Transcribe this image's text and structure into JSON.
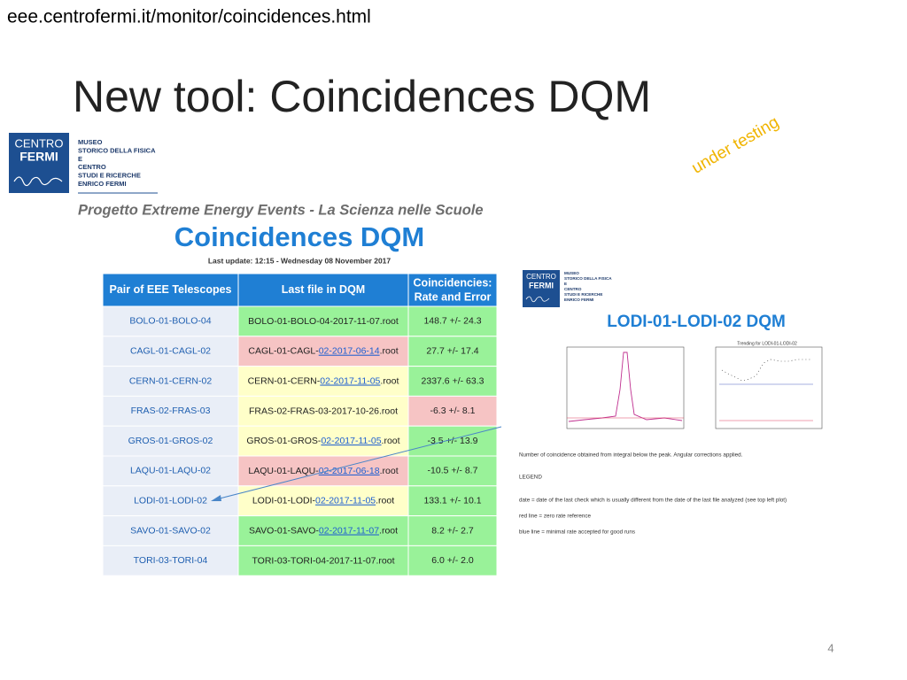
{
  "url": "eee.centrofermi.it/monitor/coincidences.html",
  "title": "New tool: Coincidences DQM",
  "annotation": "under testing",
  "logo": {
    "mark": [
      "CENTRO",
      "FERMI"
    ],
    "lines": [
      "MUSEO",
      "STORICO DELLA FISICA",
      "E",
      "CENTRO",
      "STUDI E RICERCHE",
      "ENRICO FERMI"
    ]
  },
  "page": {
    "project": "Progetto Extreme Energy Events - La Scienza nelle Scuole",
    "heading": "Coincidences DQM",
    "last_update": "Last update: 12:15 - Wednesday 08 November 2017"
  },
  "table": {
    "header_color": "#1f7fd4",
    "pair_color": "#e9eef7",
    "columns": [
      "Pair of EEE Telescopes",
      "Last file in DQM",
      [
        "Coincidencies:",
        "Rate and Error"
      ]
    ],
    "rows": [
      {
        "pair": "BOLO-01-BOLO-04",
        "file": [
          "BOLO-01-BOLO-04-2017-11-07.root"
        ],
        "file_color": "#99f299",
        "rate": "148.7 +/- 24.3",
        "rate_color": "#99f299"
      },
      {
        "pair": "CAGL-01-CAGL-02",
        "file": [
          "CAGL-01-CAGL-",
          "02-2017-06-14",
          ".root"
        ],
        "file_color": "#f6c4c4",
        "rate": "27.7 +/- 17.4",
        "rate_color": "#99f299"
      },
      {
        "pair": "CERN-01-CERN-02",
        "file": [
          "CERN-01-CERN-",
          "02-2017-11-05",
          ".root"
        ],
        "file_color": "#ffffc9",
        "rate": "2337.6 +/- 63.3",
        "rate_color": "#99f299"
      },
      {
        "pair": "FRAS-02-FRAS-03",
        "file": [
          "FRAS-02-FRAS-03-2017-10-26.root"
        ],
        "file_color": "#ffffc9",
        "rate": "-6.3 +/- 8.1",
        "rate_color": "#f6c4c4"
      },
      {
        "pair": "GROS-01-GROS-02",
        "file": [
          "GROS-01-GROS-",
          "02-2017-11-05",
          ".root"
        ],
        "file_color": "#ffffc9",
        "rate": "-3.5 +/- 13.9",
        "rate_color": "#99f299"
      },
      {
        "pair": "LAQU-01-LAQU-02",
        "file": [
          "LAQU-01-LAQU-",
          "02-2017-06-18",
          ".root"
        ],
        "file_color": "#f6c4c4",
        "rate": "-10.5 +/- 8.7",
        "rate_color": "#99f299"
      },
      {
        "pair": "LODI-01-LODI-02",
        "file": [
          "LODI-01-LODI-",
          "02-2017-11-05",
          ".root"
        ],
        "file_color": "#ffffc9",
        "rate": "133.1 +/- 10.1",
        "rate_color": "#99f299"
      },
      {
        "pair": "SAVO-01-SAVO-02",
        "file": [
          "SAVO-01-SAVO-",
          "02-2017-11-07",
          ".root"
        ],
        "file_color": "#99f299",
        "rate": "8.2 +/- 2.7",
        "rate_color": "#99f299"
      },
      {
        "pair": "TORI-03-TORI-04",
        "file": [
          "TORI-03-TORI-04-2017-11-07.root"
        ],
        "file_color": "#99f299",
        "rate": "6.0 +/- 2.0",
        "rate_color": "#99f299"
      }
    ]
  },
  "detail": {
    "heading": "LODI-01-LODI-02 DQM",
    "plot_title": "Trending for LODI-01-LODI-02",
    "notes": [
      "Number of coincidence obtained from integral below the peak. Angular corrections applied.",
      "LEGEND",
      "date = date of the last check which is usually different from the date of the last file analyzed (see top left plot)",
      "red line = zero rate reference",
      "blue line = minimal rate accepted for good runs"
    ]
  },
  "page_number": "4"
}
